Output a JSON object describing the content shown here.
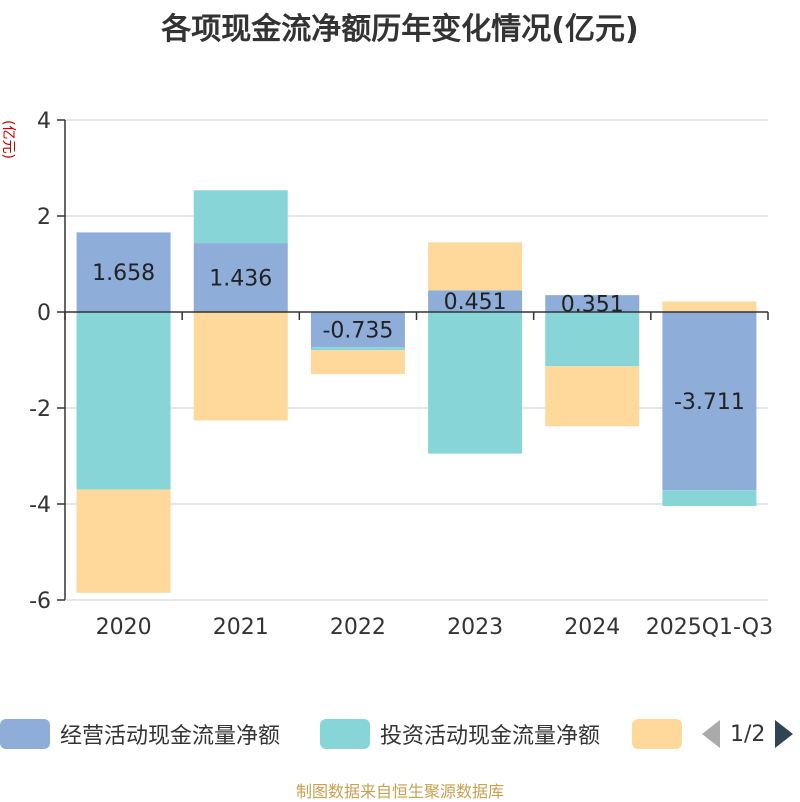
{
  "title": "各项现金流净额历年变化情况(亿元)",
  "source": "制图数据来自恒生聚源数据库",
  "legend_pager": "1/2",
  "chart_data": {
    "type": "bar",
    "stacked": true,
    "title": "各项现金流净额历年变化情况(亿元)",
    "ylabel": "(亿元)",
    "ylim": [
      -6,
      4
    ],
    "yticks": [
      "4",
      "2",
      "0",
      "-2",
      "-4",
      "-6"
    ],
    "ytick_values": [
      4,
      2,
      0,
      -2,
      -4,
      -6
    ],
    "categories": [
      "2020",
      "2021",
      "2022",
      "2023",
      "2024",
      "2025Q1-Q3"
    ],
    "series": [
      {
        "name": "经营活动现金流量净额",
        "color": "#8eadd9",
        "values": [
          1.658,
          1.436,
          -0.735,
          0.451,
          0.351,
          -3.711
        ]
      },
      {
        "name": "投资活动现金流量净额",
        "color": "#88d5d8",
        "values": [
          -3.7,
          1.1,
          -0.06,
          -2.95,
          -1.13,
          -0.33
        ]
      },
      {
        "name": "",
        "color": "#fed99b",
        "values": [
          -2.15,
          -2.26,
          -0.5,
          1.0,
          -1.25,
          0.22
        ]
      }
    ],
    "data_labels": [
      "1.658",
      "1.436",
      "-0.735",
      "0.451",
      "0.351",
      "-3.711"
    ]
  }
}
